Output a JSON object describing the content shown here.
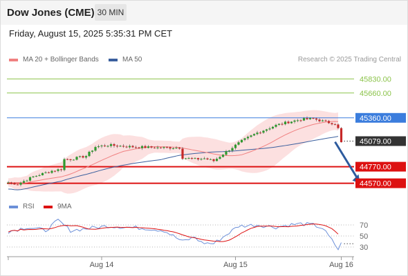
{
  "header": {
    "title": "Dow Jones (CME)",
    "timeframe": "30 MIN"
  },
  "datetime": "Friday, August 15, 2025 5:35:31 PM CET",
  "legend": {
    "ma20_label": "MA 20 + Bollinger Bands",
    "ma50_label": "MA 50",
    "credit": "Research © 2025 Trading Central"
  },
  "rsi_legend": {
    "rsi_label": "RSI",
    "ma_label": "9MA"
  },
  "colors": {
    "ma20": "#f08080",
    "ma50": "#3a5f9e",
    "band": "#fbdada",
    "up": "#2e9a2e",
    "down": "#c62828",
    "resistance": "#8bc34a",
    "pivot": "#3b7ddd",
    "support": "#dd1111",
    "last": "#333333",
    "rsi": "#6b8fd8",
    "rsi_ma": "#dd1111",
    "arrow": "#2d5b9e"
  },
  "chart_data": [
    {
      "type": "line",
      "panel": "price",
      "levels": [
        {
          "value": 45830.0,
          "label": "45830.00",
          "kind": "resistance"
        },
        {
          "value": 45660.0,
          "label": "45660.00",
          "kind": "resistance"
        },
        {
          "value": 45360.0,
          "label": "45360.00",
          "kind": "pivot"
        },
        {
          "value": 45079.0,
          "label": "45079.00",
          "kind": "last"
        },
        {
          "value": 44770.0,
          "label": "44770.00",
          "kind": "support"
        },
        {
          "value": 44570.0,
          "label": "44570.00",
          "kind": "support"
        }
      ],
      "x_ticks": [
        {
          "label": "Aug 14",
          "index": 30
        },
        {
          "label": "Aug 15",
          "index": 73
        },
        {
          "label": "Aug 16",
          "index": 107
        }
      ],
      "n_bars": 108,
      "price_range": [
        44450,
        45950
      ],
      "bollinger": true,
      "forecast_arrow": {
        "from_index": 105,
        "from_value": 45070,
        "to_index": 113,
        "to_value": 44570
      }
    },
    {
      "type": "line",
      "panel": "rsi",
      "levels": [
        {
          "value": 70,
          "label": "70"
        },
        {
          "value": 50,
          "label": "50"
        },
        {
          "value": 30,
          "label": "30"
        }
      ],
      "ylim": [
        15,
        90
      ],
      "series": [
        {
          "name": "RSI"
        },
        {
          "name": "9MA"
        }
      ]
    }
  ]
}
